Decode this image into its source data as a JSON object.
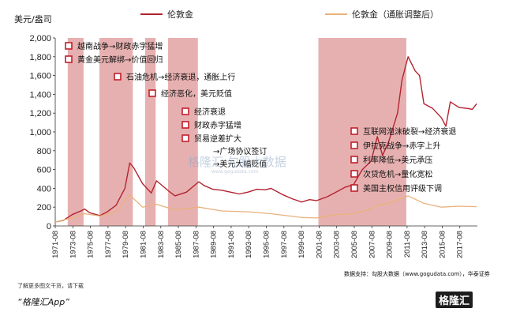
{
  "chart_data": {
    "type": "line",
    "ylabel": "美元/盎司",
    "ylim": [
      0,
      2000
    ],
    "yticks": [
      0,
      200,
      400,
      600,
      800,
      1000,
      1200,
      1400,
      1600,
      1800,
      2000
    ],
    "xlim": [
      1971.58,
      2019.58
    ],
    "xticks": [
      "1971-08",
      "1973-08",
      "1975-08",
      "1977-08",
      "1979-08",
      "1981-08",
      "1983-08",
      "1985-08",
      "1987-08",
      "1989-08",
      "1991-08",
      "1993-08",
      "1995-08",
      "1997-08",
      "1999-08",
      "2001-08",
      "2003-08",
      "2005-08",
      "2007-08",
      "2009-08",
      "2011-08",
      "2013-08",
      "2015-08",
      "2017-08"
    ],
    "grid": false,
    "legend_position": "top",
    "shaded_periods": [
      [
        1973.0,
        1974.8
      ],
      [
        1976.6,
        1980.4
      ],
      [
        1981.8,
        1983.0
      ],
      [
        1984.4,
        1987.8
      ],
      [
        2001.5,
        2011.5
      ]
    ],
    "series": [
      {
        "name": "伦敦金",
        "color": "#b3232f",
        "x": [
          1971.58,
          1972.5,
          1973.5,
          1974.5,
          1974.92,
          1975.5,
          1976.67,
          1977.5,
          1978.5,
          1979.5,
          1980.05,
          1980.5,
          1981.5,
          1982.5,
          1983.1,
          1984.5,
          1985.2,
          1986.5,
          1987.9,
          1988.5,
          1989.5,
          1990.5,
          1991.5,
          1992.5,
          1993.5,
          1994.5,
          1995.5,
          1996.1,
          1997.5,
          1998.5,
          1999.6,
          2000.5,
          2001.3,
          2002.5,
          2003.5,
          2004.5,
          2005.5,
          2006.5,
          2007.5,
          2008.2,
          2008.8,
          2009.5,
          2010.5,
          2011.0,
          2011.7,
          2012.5,
          2013.0,
          2013.5,
          2014.5,
          2015.5,
          2016.0,
          2016.5,
          2017.5,
          2018.5,
          2019.0,
          2019.5
        ],
        "values": [
          42,
          60,
          120,
          160,
          180,
          140,
          110,
          150,
          220,
          400,
          670,
          620,
          450,
          350,
          480,
          370,
          320,
          360,
          470,
          430,
          390,
          380,
          360,
          340,
          360,
          390,
          385,
          400,
          330,
          290,
          255,
          280,
          270,
          310,
          360,
          410,
          440,
          600,
          690,
          950,
          750,
          900,
          1200,
          1550,
          1800,
          1650,
          1600,
          1300,
          1250,
          1150,
          1060,
          1320,
          1260,
          1250,
          1240,
          1300
        ]
      },
      {
        "name": "伦敦金（通胀调整后）",
        "color": "#e8b27c",
        "x": [
          1971.58,
          1973.5,
          1974.92,
          1976.67,
          1978.5,
          1980.05,
          1981.5,
          1983.1,
          1985.2,
          1987.9,
          1990.5,
          1993.5,
          1996.1,
          1999.6,
          2001.3,
          2003.5,
          2005.5,
          2007.5,
          2008.2,
          2009.5,
          2011.7,
          2013.5,
          2015.5,
          2017.5,
          2019.5
        ],
        "values": [
          42,
          85,
          130,
          105,
          150,
          330,
          200,
          230,
          170,
          200,
          160,
          150,
          130,
          90,
          85,
          120,
          130,
          180,
          220,
          240,
          320,
          240,
          200,
          210,
          205
        ]
      }
    ],
    "annotations": [
      "越南战争→财政赤字猛增",
      "黄金美元解绑→价值回归",
      "石油危机→经济衰退，通胀上行",
      "经济恶化，美元贬值",
      "经济衰退",
      "财政赤字猛增",
      "贸易逆差扩大",
      "→广场协议签订",
      "→美元大幅贬值",
      "互联网泡沫破裂→经济衰退",
      "伊拉克战争→赤字上升",
      "利率降低→美元承压",
      "次贷危机→量化宽松",
      "美国主权信用评级下调"
    ]
  },
  "footer": {
    "note": "了解更多图文干货，请下载",
    "app": "“格隆汇App”",
    "source": "数据支持：勾股大数据（www.gogudata.com），华泰证券",
    "account": "格隆汇",
    "watermark": "格隆汇 勾股大数据",
    "watermark_sub": "www.gogudata.com"
  },
  "colors": {
    "gold_line": "#b3232f",
    "inflation_line": "#e8b27c",
    "shade": "#dd8f8f",
    "bullet": "#c0202b"
  }
}
